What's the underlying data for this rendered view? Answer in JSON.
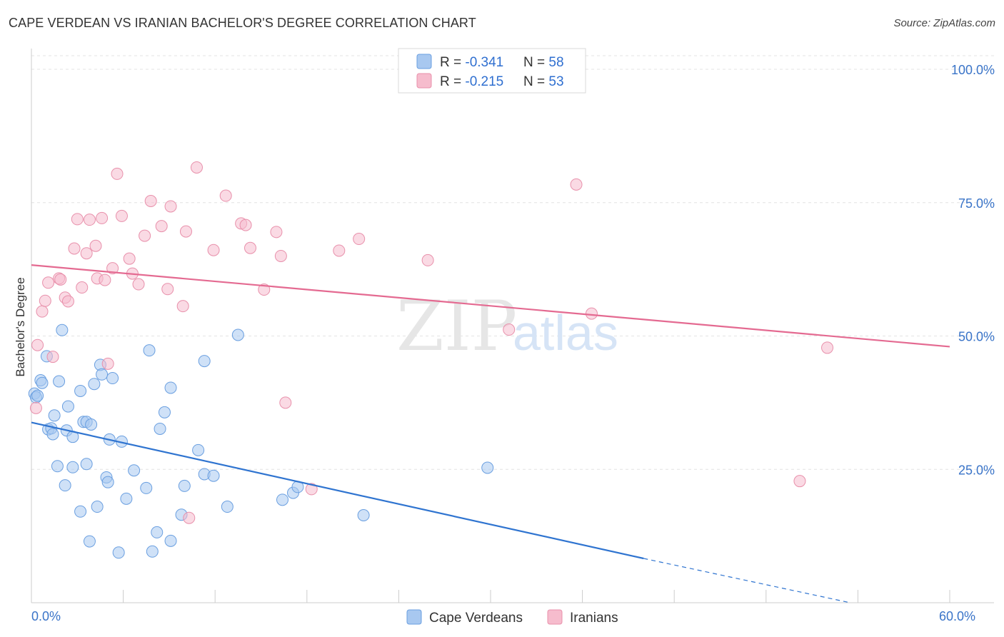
{
  "chart_data": {
    "type": "scatter",
    "title": "CAPE VERDEAN VS IRANIAN BACHELOR'S DEGREE CORRELATION CHART",
    "source": "Source: ZipAtlas.com",
    "xlabel": "",
    "ylabel": "Bachelor's Degree",
    "xlim": [
      0,
      60
    ],
    "ylim": [
      0,
      105
    ],
    "x_tick_labels": [
      "0.0%",
      "60.0%"
    ],
    "y_ticks": [
      {
        "value": 25,
        "label": "25.0%"
      },
      {
        "value": 50,
        "label": "50.0%"
      },
      {
        "value": 75,
        "label": "75.0%"
      },
      {
        "value": 100,
        "label": "100.0%"
      }
    ],
    "watermark": {
      "zip": "ZIP",
      "atlas": "atlas"
    },
    "legend_top": [
      {
        "r_label": "R = ",
        "r_value": "-0.341",
        "n_label": "N = ",
        "n_value": "58"
      },
      {
        "r_label": "R = ",
        "r_value": "-0.215",
        "n_label": "N = ",
        "n_value": "53"
      }
    ],
    "series": [
      {
        "name": "Cape Verdeans",
        "color": "#a8c8f0",
        "stroke": "#6a9fe0",
        "line_color": "#2f74d0",
        "trend": {
          "x0": 0,
          "y0": 33.8,
          "x1": 40,
          "y1": 8.3,
          "dash_to_x": 53.5,
          "dash_to_y": 0
        },
        "points": [
          [
            0.2,
            39.2
          ],
          [
            0.3,
            38.5
          ],
          [
            0.4,
            38.8
          ],
          [
            0.6,
            41.7
          ],
          [
            0.7,
            41.2
          ],
          [
            1.0,
            46.2
          ],
          [
            1.1,
            32.5
          ],
          [
            1.3,
            32.7
          ],
          [
            1.4,
            31.6
          ],
          [
            1.5,
            35.1
          ],
          [
            1.7,
            25.6
          ],
          [
            1.8,
            41.5
          ],
          [
            2.0,
            51.1
          ],
          [
            2.2,
            22.0
          ],
          [
            2.3,
            32.3
          ],
          [
            2.4,
            36.8
          ],
          [
            2.7,
            31.1
          ],
          [
            2.7,
            25.4
          ],
          [
            3.2,
            39.7
          ],
          [
            3.2,
            17.1
          ],
          [
            3.4,
            33.9
          ],
          [
            3.6,
            33.9
          ],
          [
            3.6,
            26.0
          ],
          [
            3.8,
            11.5
          ],
          [
            3.9,
            33.4
          ],
          [
            4.1,
            41.0
          ],
          [
            4.3,
            18.0
          ],
          [
            4.5,
            44.6
          ],
          [
            4.6,
            42.8
          ],
          [
            4.9,
            23.5
          ],
          [
            5.0,
            22.6
          ],
          [
            5.1,
            30.6
          ],
          [
            5.3,
            42.1
          ],
          [
            5.7,
            9.4
          ],
          [
            5.9,
            30.2
          ],
          [
            6.2,
            19.5
          ],
          [
            6.7,
            24.8
          ],
          [
            7.5,
            21.5
          ],
          [
            7.7,
            47.3
          ],
          [
            7.9,
            9.6
          ],
          [
            8.2,
            13.2
          ],
          [
            8.4,
            32.6
          ],
          [
            8.7,
            35.7
          ],
          [
            9.1,
            11.6
          ],
          [
            9.1,
            40.3
          ],
          [
            9.8,
            16.5
          ],
          [
            10.0,
            21.9
          ],
          [
            10.9,
            28.6
          ],
          [
            11.3,
            24.1
          ],
          [
            11.3,
            45.3
          ],
          [
            11.9,
            23.8
          ],
          [
            12.8,
            18.0
          ],
          [
            13.5,
            50.2
          ],
          [
            16.4,
            19.3
          ],
          [
            17.1,
            20.6
          ],
          [
            17.4,
            21.7
          ],
          [
            21.7,
            16.4
          ],
          [
            29.8,
            25.3
          ]
        ]
      },
      {
        "name": "Iranians",
        "color": "#f6bccd",
        "stroke": "#e890ab",
        "line_color": "#e46a91",
        "trend": {
          "x0": 0,
          "y0": 63.3,
          "x1": 60,
          "y1": 48.0
        },
        "points": [
          [
            0.3,
            36.5
          ],
          [
            0.4,
            48.3
          ],
          [
            0.7,
            54.6
          ],
          [
            0.9,
            56.6
          ],
          [
            1.1,
            60.0
          ],
          [
            1.4,
            46.1
          ],
          [
            1.8,
            60.8
          ],
          [
            1.9,
            60.6
          ],
          [
            2.2,
            57.2
          ],
          [
            2.4,
            56.5
          ],
          [
            2.8,
            66.4
          ],
          [
            3.0,
            71.9
          ],
          [
            3.3,
            59.1
          ],
          [
            3.6,
            65.5
          ],
          [
            3.8,
            71.8
          ],
          [
            4.2,
            66.9
          ],
          [
            4.3,
            60.8
          ],
          [
            4.6,
            72.1
          ],
          [
            4.8,
            60.5
          ],
          [
            5.0,
            44.8
          ],
          [
            5.3,
            62.7
          ],
          [
            5.6,
            80.4
          ],
          [
            5.9,
            72.5
          ],
          [
            6.4,
            64.5
          ],
          [
            6.6,
            61.7
          ],
          [
            7.0,
            59.7
          ],
          [
            7.4,
            68.8
          ],
          [
            7.8,
            75.3
          ],
          [
            8.5,
            70.6
          ],
          [
            8.9,
            58.8
          ],
          [
            9.1,
            74.3
          ],
          [
            9.9,
            55.6
          ],
          [
            10.1,
            69.6
          ],
          [
            10.8,
            81.6
          ],
          [
            11.9,
            66.1
          ],
          [
            12.7,
            76.3
          ],
          [
            13.7,
            71.1
          ],
          [
            14.0,
            70.8
          ],
          [
            14.3,
            66.5
          ],
          [
            15.2,
            58.7
          ],
          [
            16.0,
            69.5
          ],
          [
            16.3,
            65.0
          ],
          [
            16.6,
            37.5
          ],
          [
            18.3,
            21.3
          ],
          [
            20.1,
            66.0
          ],
          [
            21.4,
            68.2
          ],
          [
            25.9,
            64.2
          ],
          [
            31.2,
            51.2
          ],
          [
            35.6,
            78.4
          ],
          [
            36.6,
            54.2
          ],
          [
            50.2,
            22.8
          ],
          [
            52.0,
            47.8
          ],
          [
            10.3,
            15.9
          ]
        ]
      }
    ]
  }
}
